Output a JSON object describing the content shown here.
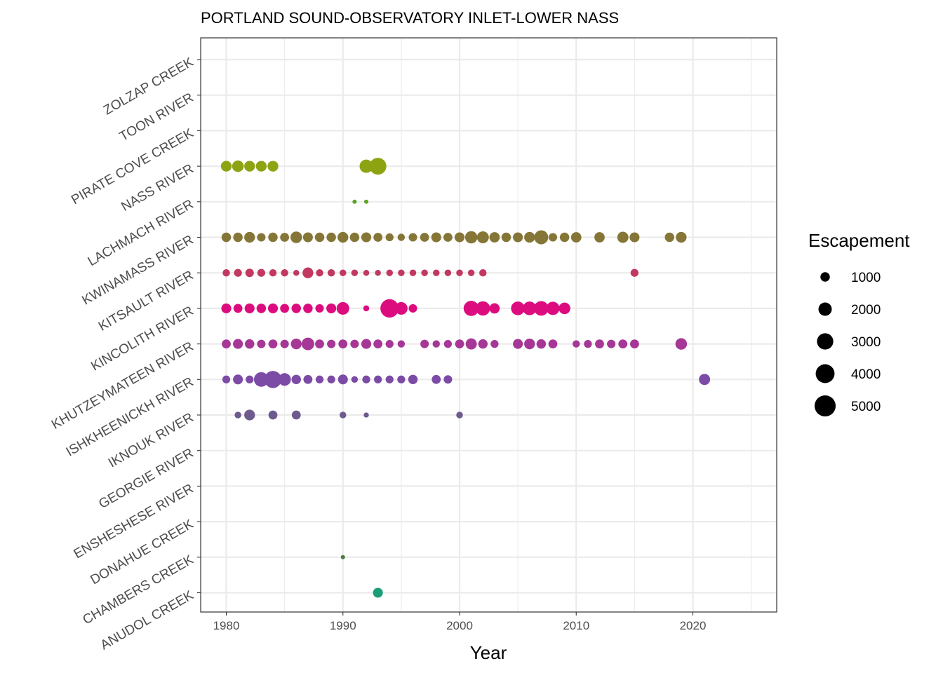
{
  "chart_data": {
    "type": "scatter",
    "title": "PORTLAND SOUND-OBSERVATORY INLET-LOWER NASS",
    "xlabel": "Year",
    "ylabel": "",
    "xlim": [
      1977.3,
      2027.2
    ],
    "x_ticks": [
      1980,
      1990,
      2000,
      2010,
      2020
    ],
    "x_tick_labels": [
      "1980",
      "1990",
      "2000",
      "2010",
      "2020"
    ],
    "grid": true,
    "legend_position": "right",
    "legend": {
      "title": "Escapement",
      "values": [
        1000,
        2000,
        3000,
        4000,
        5000
      ],
      "labels": [
        "1000",
        "2000",
        "3000",
        "4000",
        "5000"
      ],
      "color": "#000000"
    },
    "categories": [
      "ANUDOL CREEK",
      "CHAMBERS CREEK",
      "DONAHUE CREEK",
      "ENSHESHESE RIVER",
      "GEORGIE RIVER",
      "IKNOUK RIVER",
      "ISHKHEENICKH RIVER",
      "KHUTZEYMATEEN RIVER",
      "KINCOLITH RIVER",
      "KITSAULT RIVER",
      "KWINAMASS RIVER",
      "LACHMACH RIVER",
      "NASS RIVER",
      "PIRATE COVE CREEK",
      "TOON RIVER",
      "ZOLZAP CREEK"
    ],
    "series": [
      {
        "category": "ANUDOL CREEK",
        "color": "#1b9e77",
        "points": [
          [
            1993,
            1100
          ]
        ]
      },
      {
        "category": "CHAMBERS CREEK",
        "color": "#4e7a3f",
        "points": [
          [
            1990,
            200
          ]
        ]
      },
      {
        "category": "IKNOUK RIVER",
        "color": "#6e5b8e",
        "points": [
          [
            1981,
            500
          ],
          [
            1982,
            1300
          ],
          [
            1984,
            900
          ],
          [
            1986,
            900
          ],
          [
            1990,
            500
          ],
          [
            1992,
            300
          ],
          [
            2000,
            500
          ]
        ]
      },
      {
        "category": "ISHKHEENICKH RIVER",
        "color": "#7b4ba6",
        "points": [
          [
            1980,
            700
          ],
          [
            1981,
            1100
          ],
          [
            1982,
            700
          ],
          [
            1983,
            2400
          ],
          [
            1984,
            3300
          ],
          [
            1985,
            1800
          ],
          [
            1986,
            1000
          ],
          [
            1987,
            900
          ],
          [
            1988,
            700
          ],
          [
            1989,
            700
          ],
          [
            1990,
            1100
          ],
          [
            1991,
            500
          ],
          [
            1992,
            700
          ],
          [
            1993,
            700
          ],
          [
            1994,
            700
          ],
          [
            1995,
            700
          ],
          [
            1996,
            1000
          ],
          [
            1998,
            900
          ],
          [
            1999,
            800
          ],
          [
            2021,
            1400
          ]
        ]
      },
      {
        "category": "KHUTZEYMATEEN RIVER",
        "color": "#a63797",
        "points": [
          [
            1980,
            900
          ],
          [
            1981,
            1100
          ],
          [
            1982,
            1000
          ],
          [
            1983,
            800
          ],
          [
            1984,
            900
          ],
          [
            1985,
            800
          ],
          [
            1986,
            1300
          ],
          [
            1987,
            1800
          ],
          [
            1988,
            900
          ],
          [
            1989,
            800
          ],
          [
            1990,
            900
          ],
          [
            1991,
            800
          ],
          [
            1992,
            1100
          ],
          [
            1993,
            900
          ],
          [
            1994,
            700
          ],
          [
            1995,
            600
          ],
          [
            1997,
            800
          ],
          [
            1998,
            600
          ],
          [
            1999,
            700
          ],
          [
            2000,
            900
          ],
          [
            2001,
            1400
          ],
          [
            2002,
            1000
          ],
          [
            2003,
            700
          ],
          [
            2005,
            1100
          ],
          [
            2006,
            1300
          ],
          [
            2007,
            1000
          ],
          [
            2008,
            900
          ],
          [
            2010,
            600
          ],
          [
            2011,
            700
          ],
          [
            2012,
            900
          ],
          [
            2013,
            800
          ],
          [
            2014,
            900
          ],
          [
            2015,
            900
          ],
          [
            2019,
            1500
          ]
        ]
      },
      {
        "category": "KINCOLITH RIVER",
        "color": "#dc0c7e",
        "points": [
          [
            1980,
            1100
          ],
          [
            1981,
            900
          ],
          [
            1982,
            1100
          ],
          [
            1983,
            1000
          ],
          [
            1984,
            1100
          ],
          [
            1985,
            900
          ],
          [
            1986,
            1000
          ],
          [
            1987,
            1000
          ],
          [
            1988,
            800
          ],
          [
            1989,
            1100
          ],
          [
            1990,
            1800
          ],
          [
            1992,
            400
          ],
          [
            1994,
            3800
          ],
          [
            1995,
            1800
          ],
          [
            1996,
            800
          ],
          [
            2001,
            2600
          ],
          [
            2002,
            2300
          ],
          [
            2003,
            1200
          ],
          [
            2005,
            2100
          ],
          [
            2006,
            2100
          ],
          [
            2007,
            2400
          ],
          [
            2008,
            2000
          ],
          [
            2009,
            1500
          ]
        ]
      },
      {
        "category": "KITSAULT RIVER",
        "color": "#c13860",
        "points": [
          [
            1980,
            600
          ],
          [
            1981,
            700
          ],
          [
            1982,
            800
          ],
          [
            1983,
            700
          ],
          [
            1984,
            600
          ],
          [
            1985,
            600
          ],
          [
            1986,
            400
          ],
          [
            1987,
            1300
          ],
          [
            1988,
            600
          ],
          [
            1989,
            600
          ],
          [
            1990,
            500
          ],
          [
            1991,
            500
          ],
          [
            1992,
            400
          ],
          [
            1993,
            400
          ],
          [
            1994,
            500
          ],
          [
            1995,
            500
          ],
          [
            1996,
            500
          ],
          [
            1997,
            500
          ],
          [
            1998,
            500
          ],
          [
            1999,
            500
          ],
          [
            2000,
            500
          ],
          [
            2001,
            500
          ],
          [
            2002,
            600
          ],
          [
            2015,
            700
          ]
        ]
      },
      {
        "category": "KWINAMASS RIVER",
        "color": "#857637",
        "points": [
          [
            1980,
            1000
          ],
          [
            1981,
            1000
          ],
          [
            1982,
            1300
          ],
          [
            1983,
            800
          ],
          [
            1984,
            1000
          ],
          [
            1985,
            900
          ],
          [
            1986,
            1500
          ],
          [
            1987,
            1100
          ],
          [
            1988,
            1000
          ],
          [
            1989,
            1000
          ],
          [
            1990,
            1300
          ],
          [
            1991,
            1000
          ],
          [
            1992,
            1100
          ],
          [
            1993,
            900
          ],
          [
            1994,
            700
          ],
          [
            1995,
            600
          ],
          [
            1996,
            800
          ],
          [
            1997,
            900
          ],
          [
            1998,
            1100
          ],
          [
            1999,
            900
          ],
          [
            2000,
            1100
          ],
          [
            2001,
            1700
          ],
          [
            2002,
            1600
          ],
          [
            2003,
            1200
          ],
          [
            2004,
            1000
          ],
          [
            2005,
            1100
          ],
          [
            2006,
            1300
          ],
          [
            2007,
            2200
          ],
          [
            2008,
            800
          ],
          [
            2009,
            1000
          ],
          [
            2010,
            1200
          ],
          [
            2012,
            1200
          ],
          [
            2014,
            1400
          ],
          [
            2015,
            1100
          ],
          [
            2018,
            1000
          ],
          [
            2019,
            1300
          ]
        ]
      },
      {
        "category": "LACHMACH RIVER",
        "color": "#5fa324",
        "points": [
          [
            1991,
            200
          ],
          [
            1992,
            200
          ]
        ]
      },
      {
        "category": "NASS RIVER",
        "color": "#8ea312",
        "points": [
          [
            1980,
            1300
          ],
          [
            1981,
            1500
          ],
          [
            1982,
            1300
          ],
          [
            1983,
            1300
          ],
          [
            1984,
            1300
          ],
          [
            1992,
            2000
          ],
          [
            1993,
            3200
          ]
        ]
      }
    ]
  }
}
